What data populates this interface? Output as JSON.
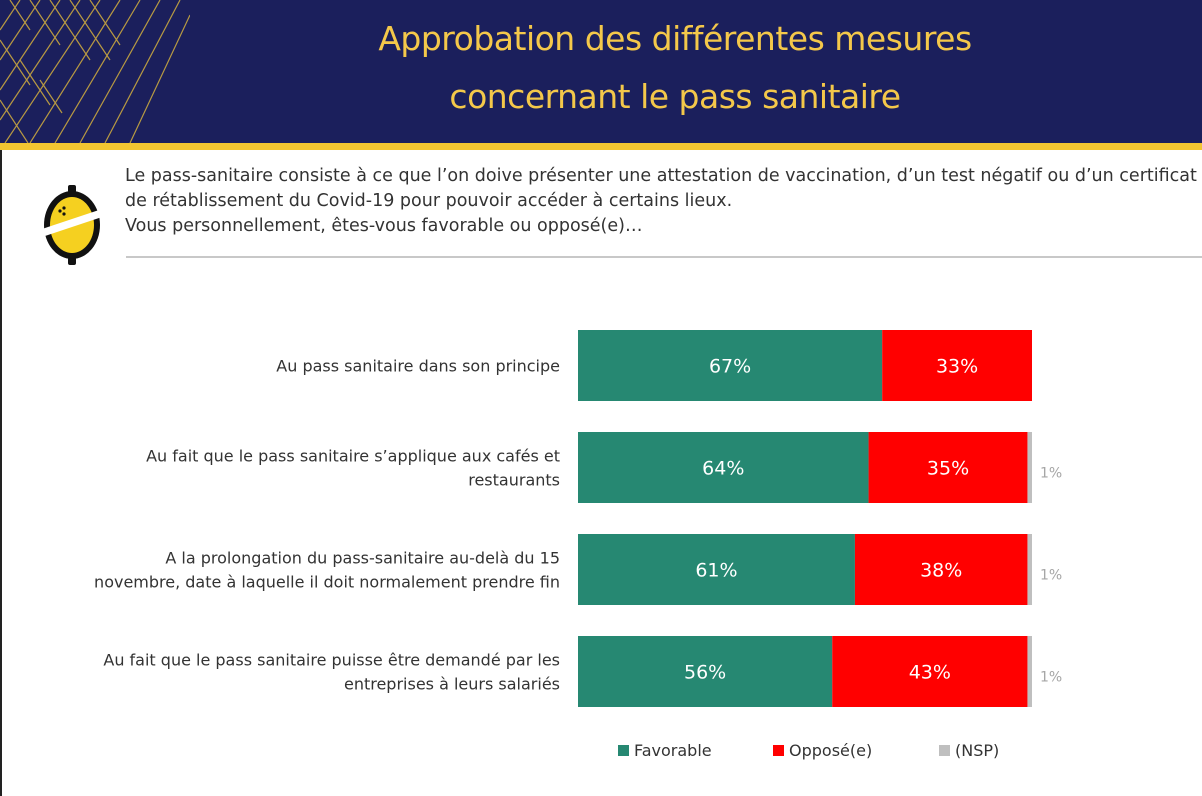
{
  "header": {
    "title_line1": "Approbation des différentes mesures",
    "title_line2": "concernant le pass sanitaire"
  },
  "question": {
    "line1": "Le pass-sanitaire consiste à ce que l’on doive présenter une attestation de vaccination, d’un test négatif ou d’un certificat",
    "line2": "de rétablissement du Covid-19 pour pouvoir accéder à certains lieux.",
    "line3": "Vous personnellement, êtes-vous favorable ou opposé(e)…"
  },
  "colors": {
    "favorable": "#268872",
    "oppose": "#ff0000",
    "nsp": "#bfbfbf",
    "header_bg": "#1b1f5c",
    "title": "#f4c84a"
  },
  "chart_data": {
    "type": "bar",
    "orientation": "horizontal",
    "stacked": true,
    "categories": [
      [
        "Au pass sanitaire dans son principe"
      ],
      [
        "Au fait que le pass sanitaire s’applique aux cafés et",
        "restaurants"
      ],
      [
        "A la prolongation du pass-sanitaire au-delà du 15",
        "novembre, date à laquelle il doit normalement prendre fin"
      ],
      [
        "Au fait que le pass sanitaire puisse être demandé par les",
        "entreprises à leurs salariés"
      ]
    ],
    "series": [
      {
        "name": "Favorable",
        "values": [
          67,
          64,
          61,
          56
        ],
        "labels": [
          "67%",
          "64%",
          "61%",
          "56%"
        ]
      },
      {
        "name": "Opposé(e)",
        "values": [
          33,
          35,
          38,
          43
        ],
        "labels": [
          "33%",
          "35%",
          "38%",
          "43%"
        ]
      },
      {
        "name": "(NSP)",
        "values": [
          0,
          1,
          1,
          1
        ],
        "labels": [
          "",
          "1%",
          "1%",
          "1%"
        ]
      }
    ],
    "xlim": [
      0,
      100
    ],
    "unit": "%",
    "legend": [
      "Favorable",
      "Opposé(e)",
      "(NSP)"
    ],
    "legend_position": "bottom"
  }
}
